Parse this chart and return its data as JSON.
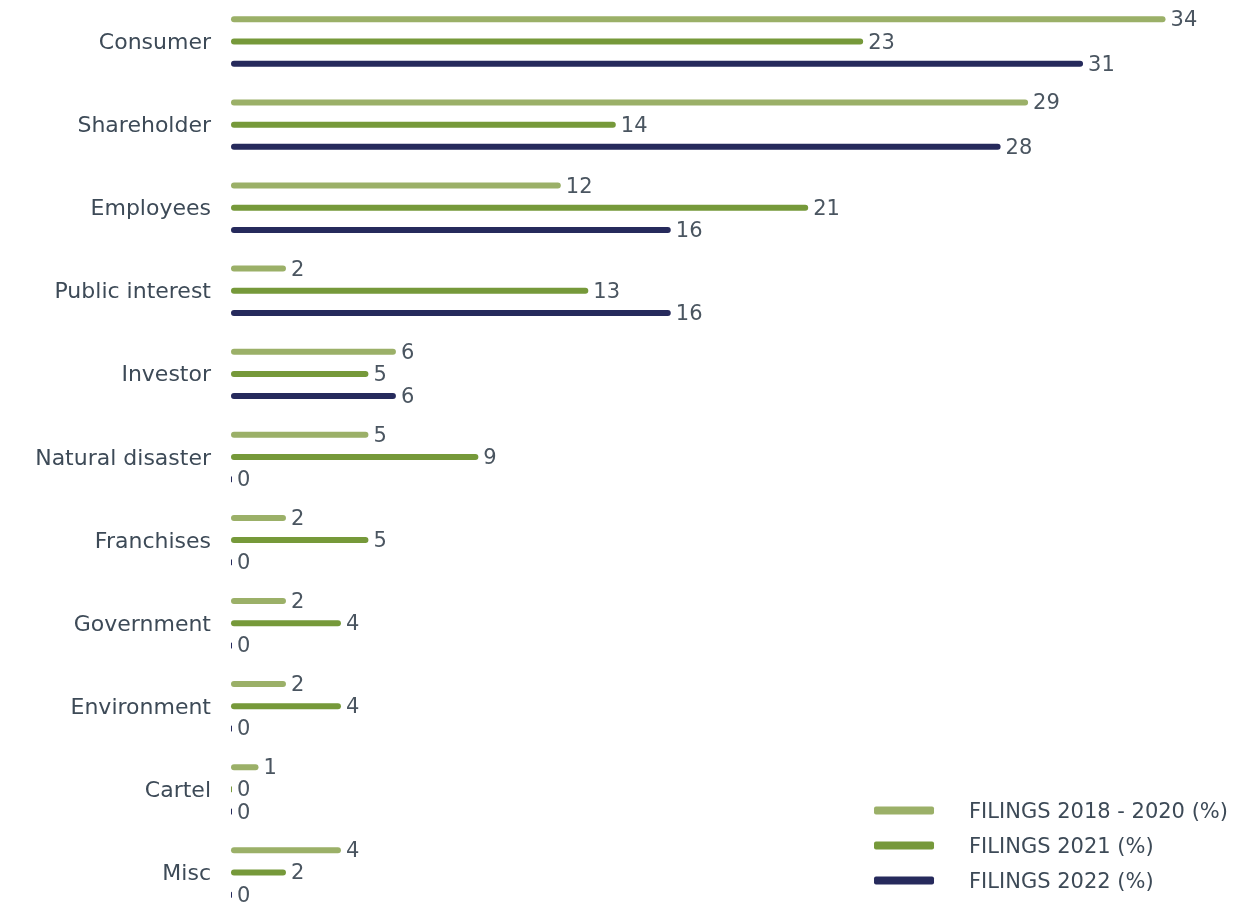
{
  "chart_data": {
    "type": "bar",
    "orientation": "horizontal",
    "data_labels": true,
    "legend": "bottom right",
    "categories": [
      "Consumer",
      "Shareholder",
      "Employees",
      "Public interest",
      "Investor",
      "Natural disaster",
      "Franchises",
      "Government",
      "Environment",
      "Cartel",
      "Misc"
    ],
    "series": [
      {
        "name": "FILINGS 2018 - 2020 (%)",
        "color": "#9bb068",
        "values": [
          34,
          29,
          12,
          2,
          6,
          5,
          2,
          2,
          2,
          1,
          4
        ]
      },
      {
        "name": "FILINGS 2021 (%)",
        "color": "#76993a",
        "values": [
          23,
          14,
          21,
          13,
          5,
          9,
          5,
          4,
          4,
          0,
          2
        ]
      },
      {
        "name": "FILINGS 2022 (%)",
        "color": "#262a5c",
        "values": [
          31,
          28,
          16,
          16,
          6,
          0,
          0,
          0,
          0,
          0,
          0
        ]
      }
    ]
  }
}
